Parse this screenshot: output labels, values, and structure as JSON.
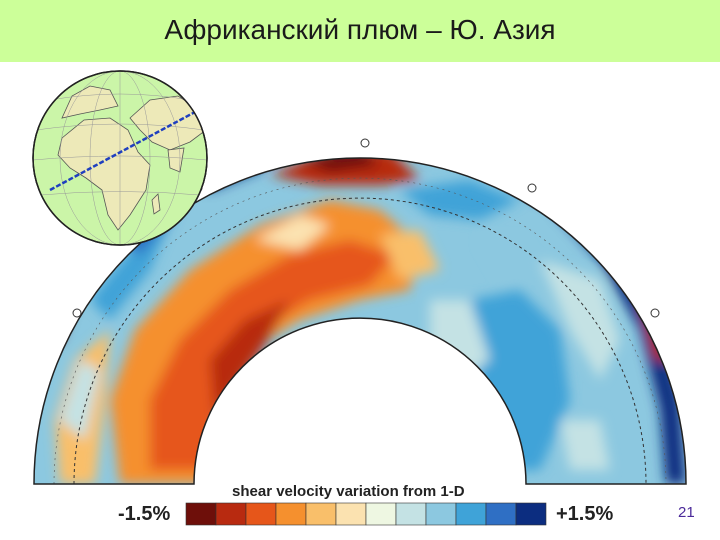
{
  "slide": {
    "title": "Африканский плюм – Ю. Азия",
    "page_number": "21"
  },
  "colorbar": {
    "label": "shear velocity variation from 1-D",
    "min_label": "-1.5%",
    "max_label": "+1.5%",
    "colors": [
      "#6e0f0a",
      "#b82a10",
      "#e6561a",
      "#f5902e",
      "#f9bf6a",
      "#fbe2b0",
      "#eef7e2",
      "#c4e2e4",
      "#8cc8e0",
      "#3fa3d8",
      "#2f6fc4",
      "#0c2d80"
    ]
  },
  "colors": {
    "title_bar": "#ccff99",
    "globe_ocean": "#cbf5a8",
    "globe_land": "#ede9b8",
    "profile_line": "#1f3fbf",
    "page_number": "#4b2a9a"
  }
}
